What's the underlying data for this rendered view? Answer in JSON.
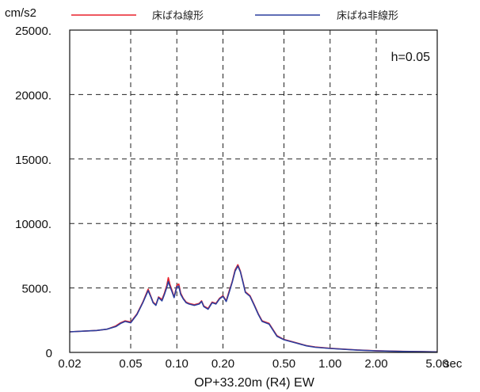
{
  "chart_data": {
    "type": "line",
    "title": "",
    "y_unit_label": "cm/s2",
    "xlabel": "OP+33.20m (R4) EW",
    "x_unit_label": "sec",
    "annotation": "h=0.05",
    "x_scale": "log",
    "xlim": [
      0.02,
      5.0
    ],
    "ylim": [
      0,
      25000
    ],
    "grid": true,
    "legend_position": "top",
    "x_ticks": [
      {
        "value": 0.02,
        "label": "0.02"
      },
      {
        "value": 0.05,
        "label": "0.05"
      },
      {
        "value": 0.1,
        "label": "0.10"
      },
      {
        "value": 0.2,
        "label": "0.20"
      },
      {
        "value": 0.5,
        "label": "0.50"
      },
      {
        "value": 1.0,
        "label": "1.00"
      },
      {
        "value": 2.0,
        "label": "2.00"
      },
      {
        "value": 5.0,
        "label": "5.00"
      }
    ],
    "y_ticks": [
      {
        "value": 0,
        "label": "0"
      },
      {
        "value": 5000,
        "label": "5000."
      },
      {
        "value": 10000,
        "label": "10000."
      },
      {
        "value": 15000,
        "label": "15000."
      },
      {
        "value": 20000,
        "label": "20000."
      },
      {
        "value": 25000,
        "label": "25000."
      }
    ],
    "series": [
      {
        "name": "床ばね線形",
        "color": "#e8202a",
        "x": [
          0.02,
          0.025,
          0.03,
          0.035,
          0.04,
          0.043,
          0.046,
          0.05,
          0.055,
          0.06,
          0.065,
          0.068,
          0.07,
          0.073,
          0.076,
          0.08,
          0.083,
          0.086,
          0.088,
          0.09,
          0.093,
          0.096,
          0.1,
          0.103,
          0.106,
          0.11,
          0.115,
          0.12,
          0.13,
          0.14,
          0.145,
          0.15,
          0.16,
          0.17,
          0.18,
          0.19,
          0.2,
          0.21,
          0.22,
          0.23,
          0.24,
          0.25,
          0.26,
          0.27,
          0.28,
          0.3,
          0.32,
          0.34,
          0.36,
          0.4,
          0.45,
          0.5,
          0.6,
          0.7,
          0.8,
          1.0,
          1.5,
          2.0,
          3.0,
          4.0,
          5.0
        ],
        "y": [
          1600,
          1650,
          1700,
          1800,
          2050,
          2300,
          2450,
          2350,
          3000,
          3900,
          4900,
          4300,
          3900,
          3700,
          4300,
          4100,
          4600,
          5200,
          5800,
          5300,
          4800,
          4300,
          5200,
          5300,
          4600,
          4200,
          3900,
          3800,
          3700,
          3800,
          4000,
          3600,
          3400,
          3900,
          3800,
          4200,
          4400,
          4000,
          4800,
          5500,
          6400,
          6800,
          6300,
          5500,
          4700,
          4400,
          3700,
          3000,
          2450,
          2250,
          1300,
          1000,
          750,
          530,
          420,
          320,
          190,
          130,
          80,
          60,
          40
        ]
      },
      {
        "name": "床ばね非線形",
        "color": "#2b3f9e",
        "x": [
          0.02,
          0.025,
          0.03,
          0.035,
          0.04,
          0.043,
          0.046,
          0.05,
          0.055,
          0.06,
          0.065,
          0.068,
          0.07,
          0.073,
          0.076,
          0.08,
          0.083,
          0.086,
          0.088,
          0.09,
          0.093,
          0.096,
          0.1,
          0.103,
          0.106,
          0.11,
          0.115,
          0.12,
          0.13,
          0.14,
          0.145,
          0.15,
          0.16,
          0.17,
          0.18,
          0.19,
          0.2,
          0.21,
          0.22,
          0.23,
          0.24,
          0.25,
          0.26,
          0.27,
          0.28,
          0.3,
          0.32,
          0.34,
          0.36,
          0.4,
          0.45,
          0.5,
          0.6,
          0.7,
          0.8,
          1.0,
          1.5,
          2.0,
          3.0,
          4.0,
          5.0
        ],
        "y": [
          1600,
          1650,
          1700,
          1800,
          2000,
          2250,
          2400,
          2300,
          2950,
          3850,
          4800,
          4250,
          3850,
          3650,
          4250,
          4000,
          4500,
          5050,
          5500,
          5150,
          4700,
          4250,
          5100,
          5150,
          4500,
          4150,
          3850,
          3750,
          3650,
          3750,
          3950,
          3550,
          3350,
          3850,
          3750,
          4150,
          4350,
          3950,
          4700,
          5450,
          6300,
          6700,
          6250,
          5450,
          4650,
          4350,
          3650,
          2950,
          2400,
          2200,
          1250,
          980,
          730,
          510,
          400,
          310,
          180,
          120,
          75,
          55,
          35
        ]
      }
    ]
  }
}
